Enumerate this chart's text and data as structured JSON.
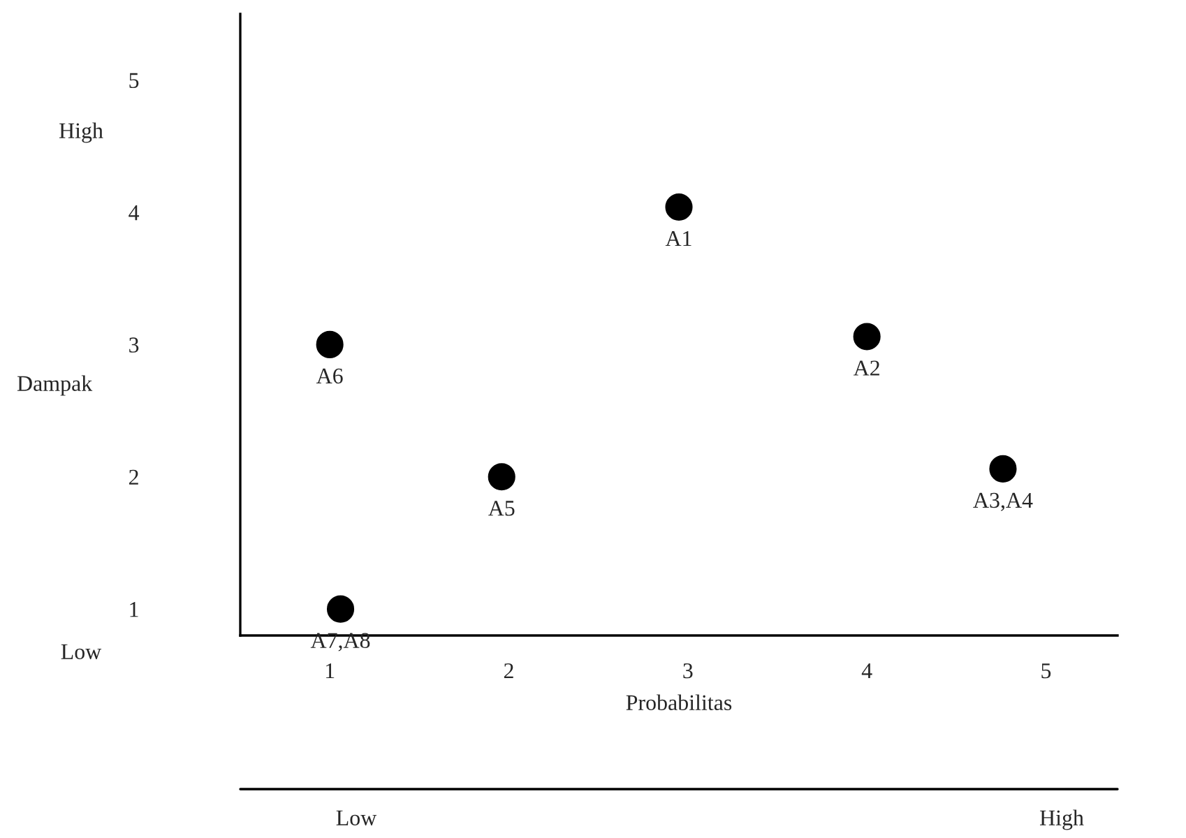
{
  "chart_data": {
    "type": "scatter",
    "xlabel": "Probabilitas",
    "ylabel": "Dampak",
    "x": [
      2.95,
      4.0,
      4.76,
      1.96,
      1.0,
      1.06
    ],
    "series": [
      {
        "color": "#000000",
        "values": [
          4.04,
          3.06,
          2.06,
          2.0,
          3.0,
          1.0
        ]
      }
    ],
    "marker": "circle",
    "grid": false,
    "legend": false,
    "xlim": [
      0.5,
      5.4
    ],
    "ylim": [
      0.8,
      5.5
    ],
    "xticks": [
      1,
      2,
      3,
      4,
      5
    ],
    "yticks": [
      1,
      2,
      3,
      4,
      5
    ],
    "annotations": [
      {
        "text": "A1",
        "x": 2.95,
        "y": 4.04
      },
      {
        "text": "A2",
        "x": 4.0,
        "y": 3.06
      },
      {
        "text": "A3,A4",
        "x": 4.76,
        "y": 2.06
      },
      {
        "text": "A5",
        "x": 1.96,
        "y": 2.0
      },
      {
        "text": "A6",
        "x": 1.0,
        "y": 3.0
      },
      {
        "text": "A7,A8",
        "x": 1.06,
        "y": 1.0
      },
      "High",
      "Low",
      "Low",
      "High"
    ]
  }
}
